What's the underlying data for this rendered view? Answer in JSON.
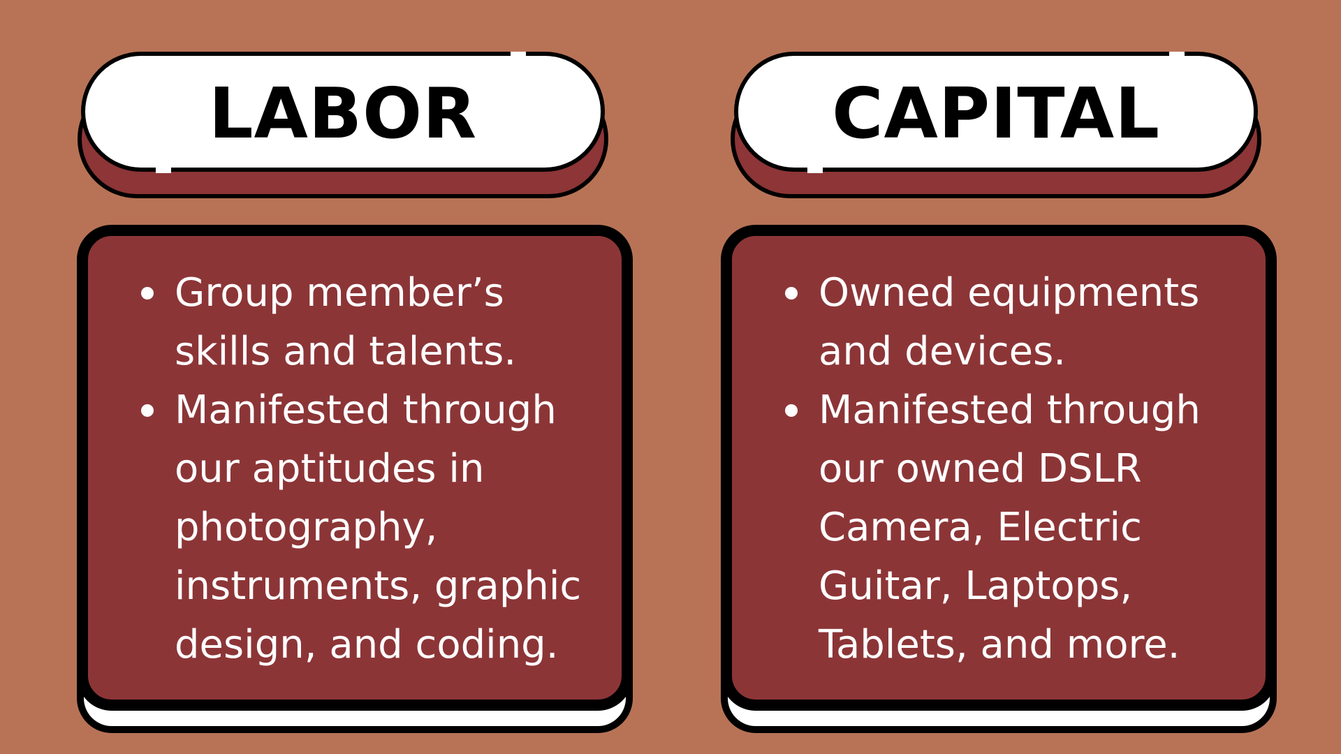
{
  "colors": {
    "background": "#b87356",
    "card_fill": "#8c3537",
    "title_fill": "#ffffff",
    "outline": "#000000",
    "text_light": "#ffffff"
  },
  "labor": {
    "title": "LABOR",
    "items": [
      "Group member’s skills and talents.",
      "Manifested through our aptitudes in photography, instruments, graphic design, and coding."
    ]
  },
  "capital": {
    "title": "CAPITAL",
    "items": [
      "Owned equipments and devices.",
      "Manifested through our owned DSLR Camera, Electric Guitar, Laptops, Tablets, and more."
    ]
  }
}
